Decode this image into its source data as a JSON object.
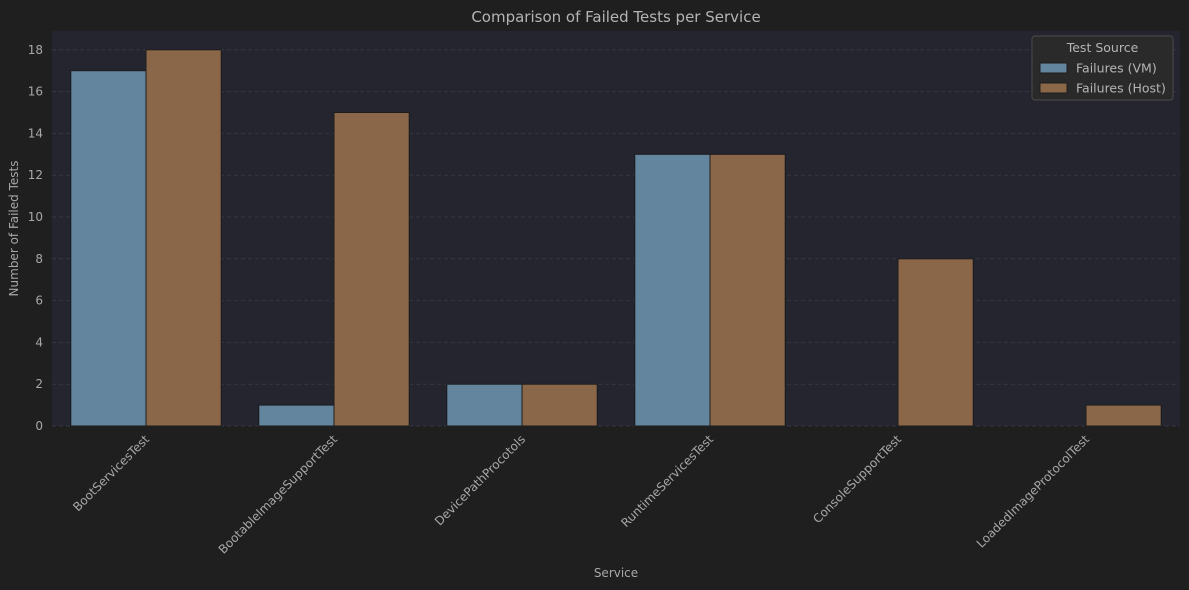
{
  "chart_data": {
    "type": "bar",
    "title": "Comparison of Failed Tests per Service",
    "xlabel": "Service",
    "ylabel": "Number of Failed Tests",
    "categories": [
      "BootServicesTest",
      "BootableImageSupportTest",
      "DevicePathProcotols",
      "RuntimeServicesTest",
      "ConsoleSupportTest",
      "LoadedImageProtocolTest"
    ],
    "series": [
      {
        "name": "Failures (VM)",
        "values": [
          17,
          1,
          2,
          13,
          0,
          0
        ],
        "color": "#63869e"
      },
      {
        "name": "Failures (Host)",
        "values": [
          18,
          15,
          2,
          13,
          8,
          1
        ],
        "color": "#8b6749"
      }
    ],
    "ylim": [
      0,
      18.9
    ],
    "yticks": [
      0,
      2,
      4,
      6,
      8,
      10,
      12,
      14,
      16,
      18
    ],
    "legend_title": "Test Source",
    "legend_position": "top-right",
    "grid": true,
    "colors": {
      "background": "#1f1f1f",
      "plot_background": "#252530",
      "grid": "#34343e",
      "text": "#a8a8a8"
    }
  }
}
